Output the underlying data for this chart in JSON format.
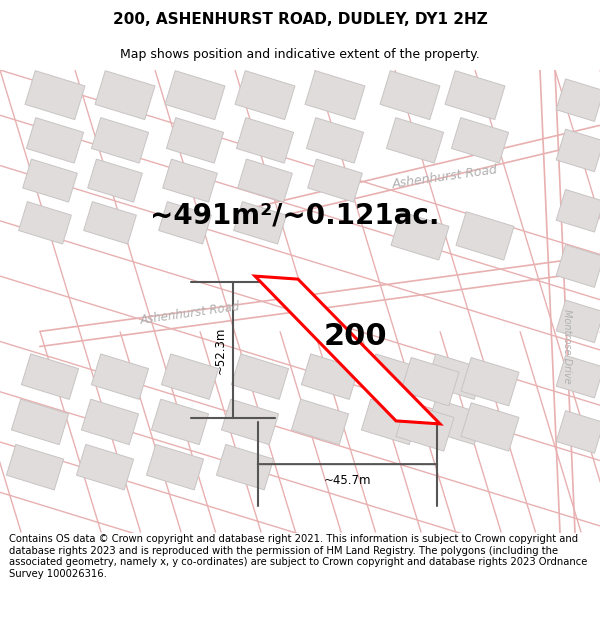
{
  "title_line1": "200, ASHENHURST ROAD, DUDLEY, DY1 2HZ",
  "title_line2": "Map shows position and indicative extent of the property.",
  "footer_text": "Contains OS data © Crown copyright and database right 2021. This information is subject to Crown copyright and database rights 2023 and is reproduced with the permission of HM Land Registry. The polygons (including the associated geometry, namely x, y co-ordinates) are subject to Crown copyright and database rights 2023 Ordnance Survey 100026316.",
  "area_text": "~491m²/~0.121ac.",
  "property_number": "200",
  "dim_width": "~45.7m",
  "dim_height": "~52.3m",
  "road_label_lower": "Ashenhurst Road",
  "road_label_upper": "Ashenhurst Road",
  "road_label_right": "Montrose Drive",
  "map_bg": "#f7f5f5",
  "road_color": "#e8b0b0",
  "building_fill": "#e0dcdc",
  "building_edge": "#c8c4c4",
  "property_fill": "#ffffff",
  "property_edge": "#ff0000",
  "dim_color": "#555555",
  "title_fontsize": 11,
  "subtitle_fontsize": 9,
  "area_fontsize": 20,
  "number_fontsize": 22,
  "footer_fontsize": 7.2
}
